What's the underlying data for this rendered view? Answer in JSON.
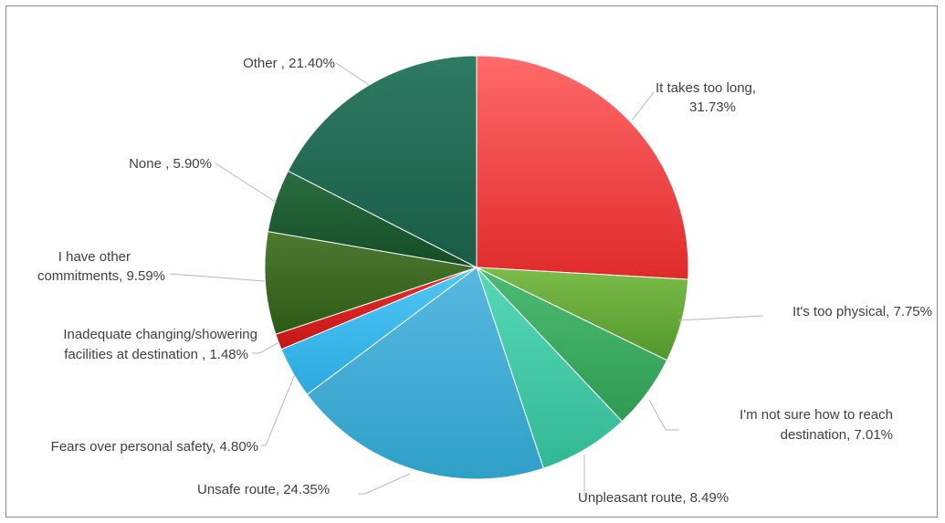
{
  "chart_data": {
    "type": "pie",
    "title": "",
    "slices": [
      {
        "label": "It takes too long",
        "value": 31.73,
        "label_lines": [
          "It takes too long,",
          "31.73%"
        ],
        "color_light": "#ff6a6a",
        "color_dark": "#e02a2a"
      },
      {
        "label": "It's too physical",
        "value": 7.75,
        "label_lines": [
          "It's too physical, 7.75%"
        ],
        "color_light": "#7cbd4a",
        "color_dark": "#52972b"
      },
      {
        "label": "I'm not sure how to reach destination",
        "value": 7.01,
        "label_lines": [
          "I'm not sure how to reach",
          "destination, 7.01%"
        ],
        "color_light": "#4cbc72",
        "color_dark": "#2f9a52"
      },
      {
        "label": "Unpleasant route",
        "value": 8.49,
        "label_lines": [
          "Unpleasant route, 8.49%"
        ],
        "color_light": "#56d8b6",
        "color_dark": "#33b894"
      },
      {
        "label": "Unsafe route",
        "value": 24.35,
        "label_lines": [
          "Unsafe route, 24.35%"
        ],
        "color_light": "#58b8e0",
        "color_dark": "#2fa0c8"
      },
      {
        "label": "Fears over personal safety",
        "value": 4.8,
        "label_lines": [
          "Fears over personal safety, 4.80%"
        ],
        "color_light": "#50c8f5",
        "color_dark": "#2aa8e0"
      },
      {
        "label": "Inadequate changing/showering facilities at destination",
        "value": 1.48,
        "label_lines": [
          "Inadequate changing/showering",
          "facilities at destination , 1.48%"
        ],
        "color_light": "#e83030",
        "color_dark": "#c41616"
      },
      {
        "label": "I have other commitments",
        "value": 9.59,
        "label_lines": [
          "I have other",
          "commitments, 9.59%"
        ],
        "color_light": "#4c7a30",
        "color_dark": "#2d5a16"
      },
      {
        "label": "None",
        "value": 5.9,
        "label_lines": [
          "None , 5.90%"
        ],
        "color_light": "#2a6e40",
        "color_dark": "#144c26"
      },
      {
        "label": "Other",
        "value": 21.4,
        "label_lines": [
          "Other , 21.40%"
        ],
        "color_light": "#2e7a62",
        "color_dark": "#1a5c46"
      }
    ]
  }
}
